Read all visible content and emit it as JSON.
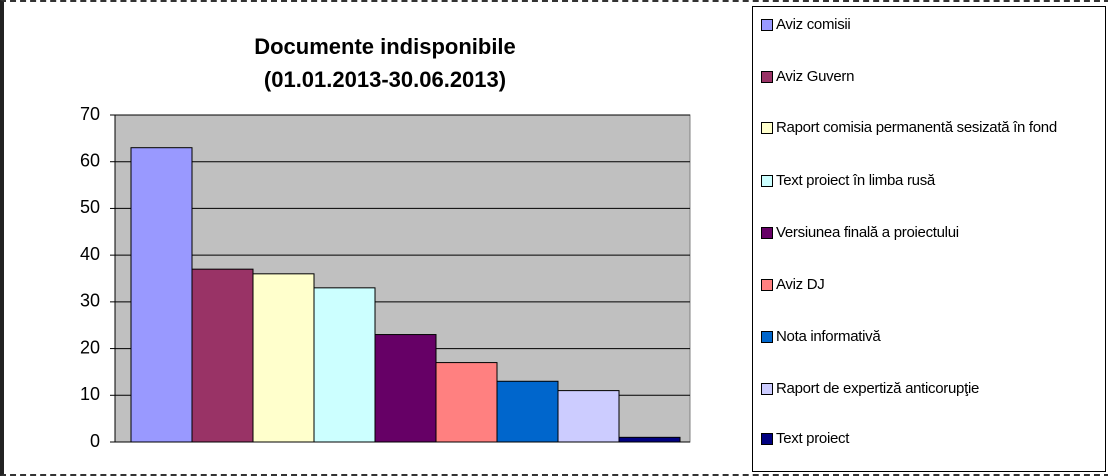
{
  "chart_data": {
    "type": "bar",
    "title": "Documente indisponibile",
    "subtitle": "(01.01.2013-30.06.2013)",
    "series": [
      {
        "name": "Aviz comisii",
        "color": "#9999ff",
        "values": [
          63
        ]
      },
      {
        "name": "Aviz Guvern",
        "color": "#993366",
        "values": [
          37
        ]
      },
      {
        "name": "Raport comisia permanentă sesizată în fond",
        "color": "#ffffcc",
        "values": [
          36
        ]
      },
      {
        "name": "Text proiect în limba rusă",
        "color": "#ccffff",
        "values": [
          33
        ]
      },
      {
        "name": "Versiunea finală a proiectului",
        "color": "#660066",
        "values": [
          23
        ]
      },
      {
        "name": "Aviz DJ",
        "color": "#ff8080",
        "values": [
          17
        ]
      },
      {
        "name": "Nota informativă",
        "color": "#0066cc",
        "values": [
          13
        ]
      },
      {
        "name": "Raport de expertiză anticorupţie",
        "color": "#ccccff",
        "values": [
          11
        ]
      },
      {
        "name": "Text proiect",
        "color": "#000080",
        "values": [
          1
        ]
      }
    ],
    "ylim": [
      0,
      70
    ],
    "yticks": [
      0,
      10,
      20,
      30,
      40,
      50,
      60,
      70
    ],
    "grid": true,
    "legend": "right"
  }
}
